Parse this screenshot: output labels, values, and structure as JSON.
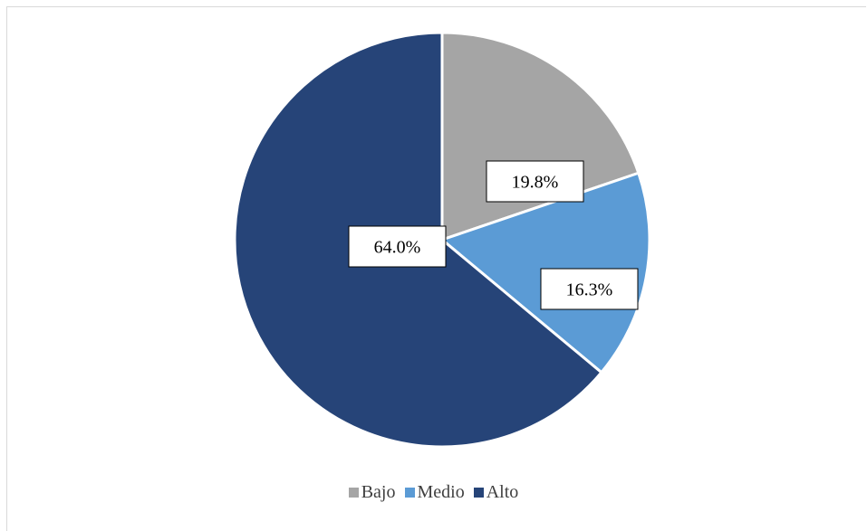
{
  "chart_data": {
    "type": "pie",
    "title": "",
    "slices": [
      {
        "name": "Bajo",
        "value": 19.8,
        "label": "19.8%",
        "color": "#a5a5a5"
      },
      {
        "name": "Medio",
        "value": 16.3,
        "label": "16.3%",
        "color": "#5b9bd5"
      },
      {
        "name": "Alto",
        "value": 64.0,
        "label": "64.0%",
        "color": "#264478"
      }
    ],
    "start_angle_deg": 0,
    "direction": "clockwise",
    "legend_position": "bottom"
  }
}
